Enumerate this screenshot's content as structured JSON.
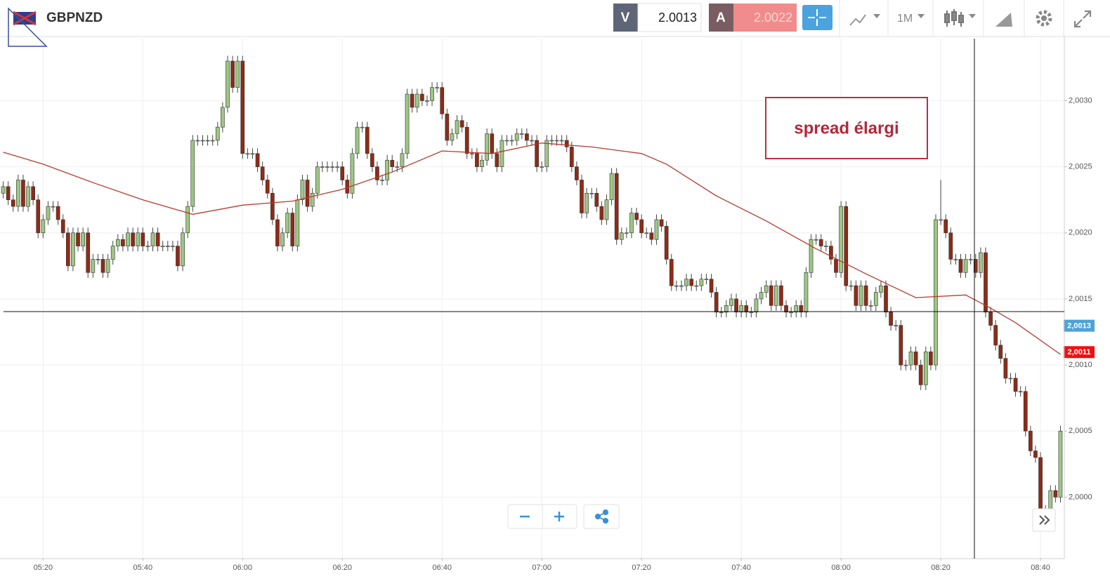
{
  "toolbar": {
    "symbol": "GBPNZD",
    "sell_label": "V",
    "sell_price": 2.0013,
    "buy_label": "A",
    "buy_price": 2.0022,
    "timeframe": "1M"
  },
  "chart_data": {
    "type": "candlestick",
    "annotation": "spread élargi",
    "up_color": "#9dc784",
    "down_color": "#8e2b17",
    "ylim": [
      1.99954,
      2.00347
    ],
    "yticks": [
      {
        "value": 2.0,
        "label": "2,0000"
      },
      {
        "value": 2.0005,
        "label": "2,0005"
      },
      {
        "value": 2.001,
        "label": "2,0010"
      },
      {
        "value": 2.0015,
        "label": "2,0015"
      },
      {
        "value": 2.002,
        "label": "2,0020"
      },
      {
        "value": 2.0025,
        "label": "2,0025"
      },
      {
        "value": 2.003,
        "label": "2,0030"
      }
    ],
    "grid": true,
    "price_labels": [
      {
        "value": 2.0013,
        "label": "2,0013",
        "color": "#4aa3d8"
      },
      {
        "value": 2.0011,
        "label": "2,0011",
        "color": "#ee1111"
      }
    ],
    "categories": [
      null,
      null,
      null,
      null,
      null,
      null,
      null,
      null,
      "05:20",
      null,
      null,
      null,
      null,
      null,
      null,
      null,
      null,
      null,
      null,
      null,
      null,
      null,
      null,
      null,
      null,
      null,
      null,
      null,
      "05:40",
      null,
      null,
      null,
      null,
      null,
      null,
      null,
      null,
      null,
      null,
      null,
      null,
      null,
      null,
      null,
      null,
      null,
      null,
      null,
      "06:00",
      null,
      null,
      null,
      null,
      null,
      null,
      null,
      null,
      null,
      null,
      null,
      null,
      null,
      null,
      null,
      null,
      null,
      null,
      null,
      "06:20",
      null,
      null,
      null,
      null,
      null,
      null,
      null,
      null,
      null,
      null,
      null,
      null,
      null,
      null,
      null,
      null,
      null,
      null,
      null,
      "06:40",
      null,
      null,
      null,
      null,
      null,
      null,
      null,
      null,
      null,
      null,
      null,
      null,
      null,
      null,
      null,
      null,
      null,
      null,
      null,
      "07:00",
      null,
      null,
      null,
      null,
      null,
      null,
      null,
      null,
      null,
      null,
      null,
      null,
      null,
      null,
      null,
      null,
      null,
      null,
      null,
      "07:20",
      null,
      null,
      null,
      null,
      null,
      null,
      null,
      null,
      null,
      null,
      null,
      null,
      null,
      null,
      null,
      null,
      null,
      null,
      null,
      "07:40",
      null,
      null,
      null,
      null,
      null,
      null,
      null,
      null,
      null,
      null,
      null,
      null,
      null,
      null,
      null,
      null,
      null,
      null,
      null,
      "08:00",
      null,
      null,
      null,
      null,
      null,
      null,
      null,
      null,
      null,
      null,
      null,
      null,
      null,
      null,
      null,
      null,
      null,
      null,
      null,
      "08:20",
      null,
      null,
      null,
      null,
      null,
      null,
      null,
      null,
      null,
      null,
      null,
      null,
      null,
      null,
      null,
      null,
      null,
      null,
      null,
      "08:40",
      null,
      null,
      null,
      null
    ],
    "open": [
      2.0023,
      2.00235,
      2.00225,
      2.0022,
      2.0024,
      2.0022,
      2.00235,
      2.00225,
      2.002,
      2.0021,
      2.0022,
      2.0022,
      2.0021,
      2.002,
      2.00175,
      2.002,
      2.0019,
      2.002,
      2.0017,
      2.0018,
      2.0018,
      2.0017,
      2.0018,
      2.0019,
      2.00195,
      2.0019,
      2.002,
      2.0019,
      2.002,
      2.0019,
      2.0019,
      2.002,
      2.0019,
      2.0019,
      2.0019,
      2.0019,
      2.00175,
      2.002,
      2.0022,
      2.0027,
      2.0027,
      2.0027,
      2.0027,
      2.0027,
      2.0028,
      2.00295,
      2.0033,
      2.0031,
      2.0033,
      2.0026,
      2.0026,
      2.0026,
      2.0025,
      2.0024,
      2.0023,
      2.0021,
      2.0019,
      2.002,
      2.00215,
      2.0019,
      2.00225,
      2.0024,
      2.0022,
      2.0023,
      2.0025,
      2.0025,
      2.0025,
      2.0025,
      2.0025,
      2.0024,
      2.0023,
      2.0026,
      2.0028,
      2.0028,
      2.0026,
      2.0025,
      2.0024,
      2.0024,
      2.00255,
      2.0025,
      2.0025,
      2.0026,
      2.00305,
      2.00295,
      2.00305,
      2.003,
      2.003,
      2.0031,
      2.0031,
      2.0029,
      2.0027,
      2.00275,
      2.00285,
      2.0028,
      2.0026,
      2.0026,
      2.0025,
      2.00255,
      2.00275,
      2.0026,
      2.0025,
      2.0027,
      2.0027,
      2.0027,
      2.00275,
      2.00275,
      2.0027,
      2.0027,
      2.0025,
      2.0025,
      2.0027,
      2.0027,
      2.0027,
      2.0027,
      2.00265,
      2.0025,
      2.0024,
      2.00215,
      2.0023,
      2.0023,
      2.0022,
      2.0021,
      2.00225,
      2.00245,
      2.00195,
      2.002,
      2.002,
      2.00215,
      2.0021,
      2.002,
      2.002,
      2.00195,
      2.0021,
      2.00205,
      2.0018,
      2.0016,
      2.0016,
      2.0016,
      2.00165,
      2.0016,
      2.0016,
      2.00165,
      2.00165,
      2.00155,
      2.0014,
      2.0014,
      2.00145,
      2.0015,
      2.0014,
      2.00145,
      2.0014,
      2.0014,
      2.0015,
      2.00155,
      2.0016,
      2.00145,
      2.0016,
      2.00145,
      2.0014,
      2.0014,
      2.00145,
      2.0014,
      2.0017,
      2.00195,
      2.00195,
      2.0019,
      2.0019,
      2.0018,
      2.0017,
      2.0022,
      2.0016,
      2.0016,
      2.00145,
      2.0016,
      2.00145,
      2.00145,
      2.00155,
      2.0016,
      2.0014,
      2.0013,
      2.0013,
      2.001,
      2.001,
      2.0011,
      2.001,
      2.00085,
      2.0011,
      2.001,
      2.0021,
      2.0021,
      2.002,
      2.0018,
      2.0018,
      2.0017,
      2.0018,
      2.0018,
      2.0017,
      2.00185,
      2.0014,
      2.0013,
      2.00115,
      2.00105,
      2.0009,
      2.0009,
      2.0008,
      2.0008,
      2.0005,
      2.00035,
      2.0003,
      1.9999,
      1.99985,
      2.00005,
      2.0
    ],
    "high": [
      2.00239,
      2.00239,
      2.00229,
      2.00244,
      2.00244,
      2.00239,
      2.00239,
      2.00229,
      2.00214,
      2.00224,
      2.00224,
      2.00224,
      2.00214,
      2.00204,
      2.00204,
      2.00204,
      2.00204,
      2.00204,
      2.00184,
      2.00184,
      2.00184,
      2.00184,
      2.00194,
      2.00199,
      2.00199,
      2.00204,
      2.00204,
      2.00204,
      2.00204,
      2.00194,
      2.00204,
      2.00204,
      2.00194,
      2.00194,
      2.00194,
      2.00194,
      2.00204,
      2.00224,
      2.00274,
      2.00274,
      2.00274,
      2.00274,
      2.00274,
      2.00284,
      2.00299,
      2.00334,
      2.00334,
      2.00334,
      2.00334,
      2.00264,
      2.00264,
      2.00264,
      2.00254,
      2.00244,
      2.00234,
      2.00214,
      2.00204,
      2.00219,
      2.00219,
      2.00229,
      2.00244,
      2.00244,
      2.00234,
      2.00254,
      2.00254,
      2.00254,
      2.00254,
      2.00254,
      2.00254,
      2.00244,
      2.00264,
      2.00284,
      2.00284,
      2.00284,
      2.00264,
      2.00254,
      2.00244,
      2.00259,
      2.00259,
      2.00254,
      2.00264,
      2.00309,
      2.00309,
      2.00309,
      2.00309,
      2.00304,
      2.00314,
      2.00314,
      2.00314,
      2.00294,
      2.00279,
      2.00289,
      2.00289,
      2.00284,
      2.00264,
      2.00264,
      2.00259,
      2.00279,
      2.00279,
      2.00264,
      2.00274,
      2.00274,
      2.00274,
      2.00279,
      2.00279,
      2.00279,
      2.00274,
      2.00274,
      2.00254,
      2.00274,
      2.00274,
      2.00274,
      2.00274,
      2.00274,
      2.00269,
      2.00254,
      2.00244,
      2.00234,
      2.00234,
      2.00234,
      2.00224,
      2.00229,
      2.00249,
      2.00249,
      2.00204,
      2.00204,
      2.00219,
      2.00219,
      2.00214,
      2.00204,
      2.00204,
      2.00214,
      2.00214,
      2.00209,
      2.00184,
      2.00164,
      2.00164,
      2.00169,
      2.00169,
      2.00164,
      2.00169,
      2.00169,
      2.00169,
      2.00159,
      2.00144,
      2.00149,
      2.00154,
      2.00154,
      2.00149,
      2.00149,
      2.00144,
      2.00154,
      2.00159,
      2.00164,
      2.00164,
      2.00164,
      2.00164,
      2.00149,
      2.00144,
      2.00149,
      2.00149,
      2.00174,
      2.00199,
      2.00199,
      2.00199,
      2.00194,
      2.00194,
      2.00184,
      2.00224,
      2.00224,
      2.00164,
      2.00164,
      2.00164,
      2.00164,
      2.00149,
      2.00159,
      2.00164,
      2.00164,
      2.00144,
      2.00134,
      2.00134,
      2.00104,
      2.00114,
      2.00114,
      2.00104,
      2.00114,
      2.00114,
      2.00214,
      2.0024,
      2.00214,
      2.00204,
      2.00184,
      2.00184,
      2.00184,
      2.00184,
      2.00184,
      2.00189,
      2.00189,
      2.00144,
      2.00134,
      2.00119,
      2.00109,
      2.00094,
      2.00094,
      2.00084,
      2.00084,
      2.00054,
      2.00039,
      2.00034,
      1.99994,
      2.00009,
      2.00009,
      2.00054
    ],
    "low": [
      2.00226,
      2.00221,
      2.00216,
      2.00216,
      2.00216,
      2.00216,
      2.00221,
      2.00196,
      2.00196,
      2.00206,
      2.00216,
      2.00206,
      2.00196,
      2.00171,
      2.00171,
      2.00186,
      2.00186,
      2.00166,
      2.00166,
      2.00176,
      2.00166,
      2.00166,
      2.00176,
      2.00186,
      2.00186,
      2.00186,
      2.00186,
      2.00186,
      2.00186,
      2.00186,
      2.00186,
      2.00186,
      2.00186,
      2.00186,
      2.00186,
      2.00171,
      2.00171,
      2.00196,
      2.00216,
      2.00266,
      2.00266,
      2.00266,
      2.00266,
      2.00266,
      2.00276,
      2.00291,
      2.00306,
      2.00306,
      2.00256,
      2.00256,
      2.00256,
      2.00246,
      2.00236,
      2.00226,
      2.00206,
      2.00186,
      2.00186,
      2.00196,
      2.00186,
      2.00186,
      2.00221,
      2.00216,
      2.00216,
      2.00226,
      2.00246,
      2.00246,
      2.00246,
      2.00246,
      2.00236,
      2.00226,
      2.00226,
      2.00256,
      2.00276,
      2.00256,
      2.00246,
      2.00236,
      2.00236,
      2.00236,
      2.00246,
      2.00246,
      2.00246,
      2.00256,
      2.00291,
      2.00291,
      2.00296,
      2.00296,
      2.00296,
      2.00306,
      2.00286,
      2.00266,
      2.00266,
      2.00271,
      2.00276,
      2.00256,
      2.00256,
      2.00246,
      2.00246,
      2.00251,
      2.00256,
      2.00246,
      2.00246,
      2.00266,
      2.00266,
      2.00266,
      2.00271,
      2.00266,
      2.00266,
      2.00246,
      2.00246,
      2.00246,
      2.00266,
      2.00266,
      2.00266,
      2.00261,
      2.00246,
      2.00236,
      2.00211,
      2.00211,
      2.00226,
      2.00216,
      2.00206,
      2.00206,
      2.00221,
      2.00191,
      2.00191,
      2.00196,
      2.00196,
      2.00206,
      2.00196,
      2.00196,
      2.00191,
      2.00191,
      2.00201,
      2.00176,
      2.00156,
      2.00156,
      2.00156,
      2.00156,
      2.00156,
      2.00156,
      2.00156,
      2.00161,
      2.00151,
      2.00136,
      2.00136,
      2.00136,
      2.00141,
      2.00136,
      2.00136,
      2.00136,
      2.00136,
      2.00136,
      2.00146,
      2.00151,
      2.00141,
      2.00141,
      2.00141,
      2.00136,
      2.00136,
      2.00136,
      2.00136,
      2.00136,
      2.00166,
      2.00191,
      2.00186,
      2.00186,
      2.00176,
      2.00166,
      2.00166,
      2.00156,
      2.00156,
      2.00141,
      2.00141,
      2.00141,
      2.00141,
      2.00141,
      2.00151,
      2.00136,
      2.00126,
      2.00126,
      2.00096,
      2.00096,
      2.00096,
      2.00096,
      2.00081,
      2.00081,
      2.00096,
      2.00096,
      2.00206,
      2.00196,
      2.00176,
      2.00176,
      2.00166,
      2.00166,
      2.00176,
      2.00166,
      2.00166,
      2.00136,
      2.00126,
      2.00111,
      2.00101,
      2.00086,
      2.00086,
      2.00076,
      2.00076,
      2.00046,
      2.00031,
      2.00026,
      1.99986,
      1.99981,
      1.99981,
      1.99996,
      1.99996
    ],
    "close": [
      2.00235,
      2.00225,
      2.0022,
      2.0024,
      2.0022,
      2.00235,
      2.00225,
      2.002,
      2.0021,
      2.0022,
      2.0022,
      2.0021,
      2.002,
      2.00175,
      2.002,
      2.0019,
      2.002,
      2.0017,
      2.0018,
      2.0018,
      2.0017,
      2.0018,
      2.0019,
      2.00195,
      2.0019,
      2.002,
      2.0019,
      2.002,
      2.0019,
      2.0019,
      2.002,
      2.0019,
      2.0019,
      2.0019,
      2.0019,
      2.00175,
      2.002,
      2.0022,
      2.0027,
      2.0027,
      2.0027,
      2.0027,
      2.0027,
      2.0028,
      2.00295,
      2.0033,
      2.0031,
      2.0033,
      2.0026,
      2.0026,
      2.0026,
      2.0025,
      2.0024,
      2.0023,
      2.0021,
      2.0019,
      2.002,
      2.00215,
      2.0019,
      2.00225,
      2.0024,
      2.0022,
      2.0023,
      2.0025,
      2.0025,
      2.0025,
      2.0025,
      2.0025,
      2.0024,
      2.0023,
      2.0026,
      2.0028,
      2.0028,
      2.0026,
      2.0025,
      2.0024,
      2.0024,
      2.00255,
      2.0025,
      2.0025,
      2.0026,
      2.00305,
      2.00295,
      2.00305,
      2.003,
      2.003,
      2.0031,
      2.0031,
      2.0029,
      2.0027,
      2.00275,
      2.00285,
      2.0028,
      2.0026,
      2.0026,
      2.0025,
      2.00255,
      2.00275,
      2.0026,
      2.0025,
      2.0027,
      2.0027,
      2.0027,
      2.00275,
      2.00275,
      2.0027,
      2.0027,
      2.0025,
      2.0025,
      2.0027,
      2.0027,
      2.0027,
      2.0027,
      2.00265,
      2.0025,
      2.0024,
      2.00215,
      2.0023,
      2.0023,
      2.0022,
      2.0021,
      2.00225,
      2.00245,
      2.00195,
      2.002,
      2.002,
      2.00215,
      2.0021,
      2.002,
      2.002,
      2.00195,
      2.0021,
      2.00205,
      2.0018,
      2.0016,
      2.0016,
      2.0016,
      2.00165,
      2.0016,
      2.0016,
      2.00165,
      2.00165,
      2.00155,
      2.0014,
      2.0014,
      2.00145,
      2.0015,
      2.0014,
      2.00145,
      2.0014,
      2.0014,
      2.0015,
      2.00155,
      2.0016,
      2.00145,
      2.0016,
      2.00145,
      2.0014,
      2.0014,
      2.00145,
      2.0014,
      2.0017,
      2.00195,
      2.00195,
      2.0019,
      2.0019,
      2.0018,
      2.0017,
      2.0022,
      2.0016,
      2.0016,
      2.00145,
      2.0016,
      2.00145,
      2.00145,
      2.00155,
      2.0016,
      2.0014,
      2.0013,
      2.0013,
      2.001,
      2.001,
      2.0011,
      2.001,
      2.00085,
      2.0011,
      2.001,
      2.0021,
      2.0021,
      2.002,
      2.0018,
      2.0018,
      2.0017,
      2.0018,
      2.0018,
      2.0017,
      2.00185,
      2.0014,
      2.0013,
      2.00115,
      2.00105,
      2.0009,
      2.0009,
      2.0008,
      2.0008,
      2.0005,
      2.00035,
      2.0003,
      1.9999,
      1.99985,
      2.00005,
      2.0,
      2.0005
    ],
    "ma": {
      "color": "#b83a2e",
      "x": [
        0,
        8,
        18,
        28,
        38,
        48,
        58,
        68,
        78,
        88,
        98,
        108,
        118,
        128,
        133,
        143,
        153,
        163,
        173,
        183,
        193,
        198,
        203,
        212
      ],
      "values": [
        2.00261,
        2.00252,
        2.00238,
        2.00225,
        2.00214,
        2.00221,
        2.00224,
        2.00233,
        2.00246,
        2.00262,
        2.0026,
        2.00268,
        2.00265,
        2.0026,
        2.00252,
        2.00228,
        2.00209,
        2.00188,
        2.00169,
        2.00151,
        2.00153,
        2.00143,
        2.00132,
        2.00108
      ]
    }
  }
}
